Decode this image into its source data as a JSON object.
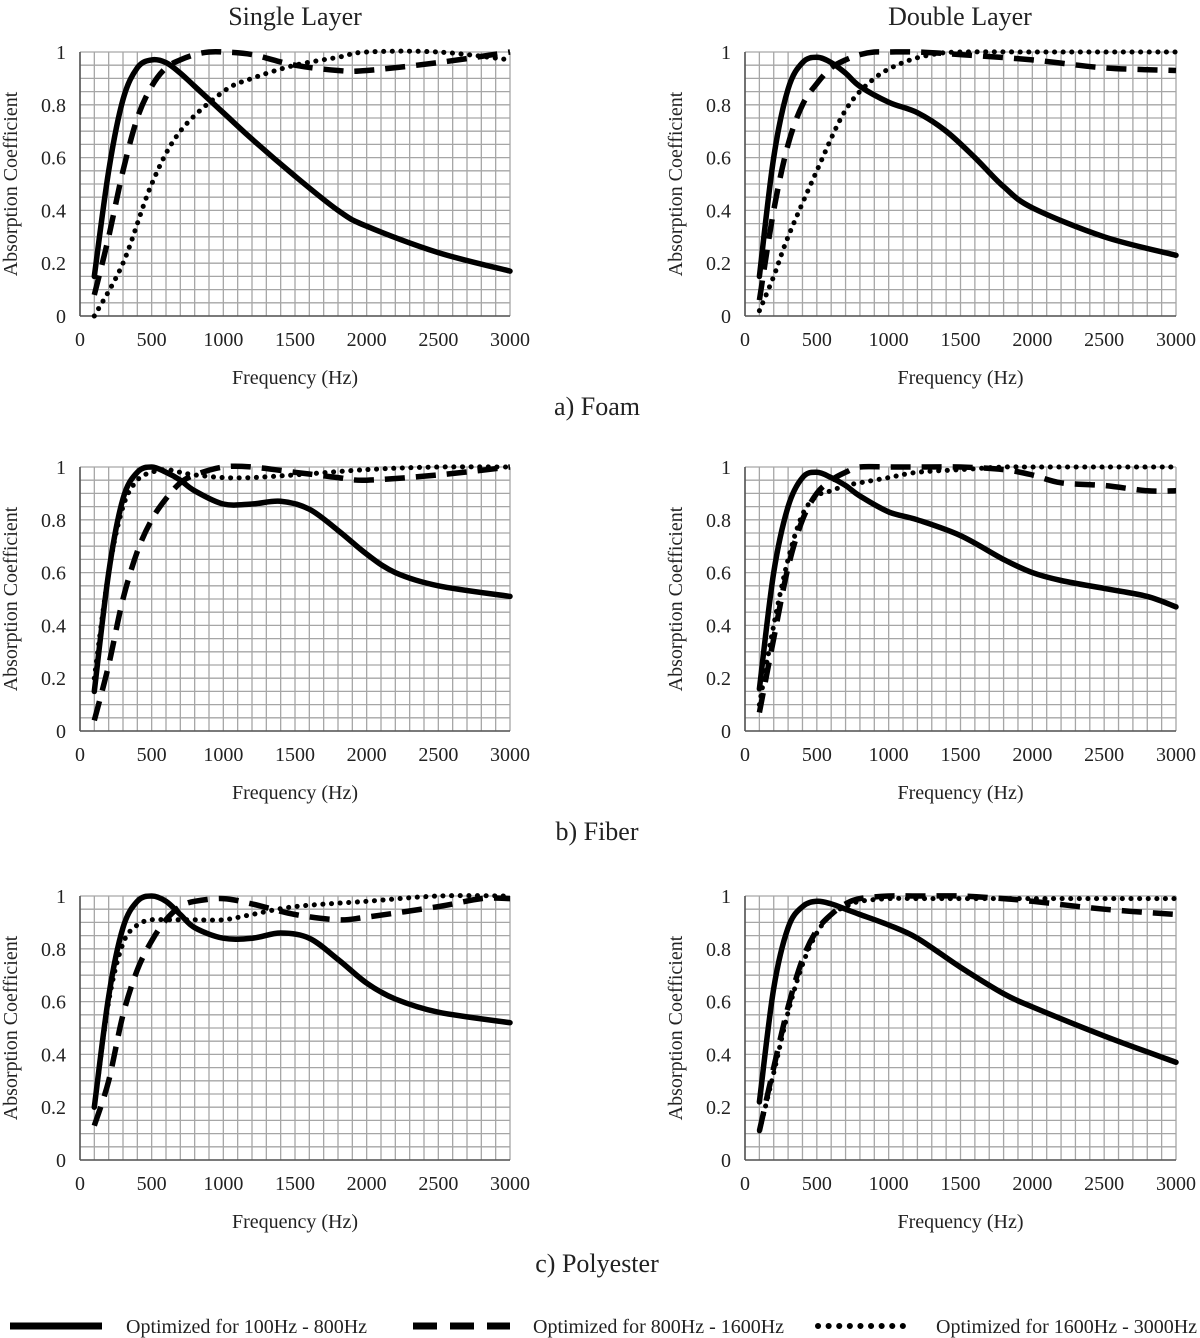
{
  "column_titles": [
    "Single Layer",
    "Double Layer"
  ],
  "row_captions": [
    "a) Foam",
    "b) Fiber",
    "c) Polyester"
  ],
  "legend": [
    {
      "label": "Optimized for  100Hz - 800Hz",
      "style": "solid"
    },
    {
      "label": "Optimized for  800Hz - 1600Hz",
      "style": "dashed"
    },
    {
      "label": "Optimized for  1600Hz - 3000Hz",
      "style": "dotted"
    }
  ],
  "colors": {
    "line": "#000000",
    "grid": "#a6a6a6",
    "text": "#222222"
  },
  "chart_data": [
    {
      "type": "line",
      "material": "Foam",
      "layer": "Single Layer",
      "xlabel": "Frequency (Hz)",
      "ylabel": "Absorption Coefficient",
      "xlim": [
        0,
        3000
      ],
      "ylim": [
        0,
        1
      ],
      "xticks": [
        "0",
        "500",
        "1000",
        "1500",
        "2000",
        "2500",
        "3000"
      ],
      "yticks": [
        "0",
        "0.2",
        "0.4",
        "0.6",
        "0.8",
        "1"
      ],
      "grid": true,
      "series": [
        {
          "style": "solid",
          "x": [
            100,
            200,
            300,
            400,
            500,
            600,
            700,
            800,
            1000,
            1200,
            1500,
            1800,
            2000,
            2500,
            3000
          ],
          "y": [
            0.15,
            0.55,
            0.82,
            0.94,
            0.97,
            0.96,
            0.92,
            0.87,
            0.77,
            0.67,
            0.53,
            0.4,
            0.34,
            0.24,
            0.17
          ]
        },
        {
          "style": "dashed",
          "x": [
            100,
            200,
            300,
            400,
            500,
            600,
            700,
            800,
            900,
            1000,
            1200,
            1500,
            1800,
            2000,
            2500,
            3000
          ],
          "y": [
            0.08,
            0.3,
            0.55,
            0.75,
            0.87,
            0.94,
            0.97,
            0.99,
            1.0,
            1.0,
            0.99,
            0.95,
            0.93,
            0.93,
            0.96,
            1.0
          ]
        },
        {
          "style": "dotted",
          "x": [
            100,
            300,
            500,
            700,
            1000,
            1200,
            1500,
            1800,
            2000,
            2500,
            3000
          ],
          "y": [
            0.0,
            0.2,
            0.5,
            0.7,
            0.85,
            0.9,
            0.95,
            0.98,
            1.0,
            1.0,
            0.97
          ]
        }
      ]
    },
    {
      "type": "line",
      "material": "Foam",
      "layer": "Double Layer",
      "xlabel": "Frequency (Hz)",
      "ylabel": "Absorption Coefficient",
      "xlim": [
        0,
        3000
      ],
      "ylim": [
        0,
        1
      ],
      "xticks": [
        "0",
        "500",
        "1000",
        "1500",
        "2000",
        "2500",
        "3000"
      ],
      "yticks": [
        "0",
        "0.2",
        "0.4",
        "0.6",
        "0.8",
        "1"
      ],
      "grid": true,
      "series": [
        {
          "style": "solid",
          "x": [
            100,
            200,
            300,
            400,
            500,
            600,
            700,
            800,
            1000,
            1200,
            1400,
            1600,
            1800,
            2000,
            2500,
            3000
          ],
          "y": [
            0.15,
            0.6,
            0.86,
            0.96,
            0.98,
            0.96,
            0.92,
            0.87,
            0.81,
            0.77,
            0.7,
            0.6,
            0.49,
            0.41,
            0.3,
            0.23
          ]
        },
        {
          "style": "dashed",
          "x": [
            100,
            200,
            300,
            400,
            500,
            600,
            700,
            800,
            900,
            1000,
            1200,
            1500,
            2000,
            2500,
            3000
          ],
          "y": [
            0.06,
            0.4,
            0.65,
            0.8,
            0.88,
            0.94,
            0.97,
            0.99,
            1.0,
            1.0,
            1.0,
            0.99,
            0.97,
            0.94,
            0.93
          ]
        },
        {
          "style": "dotted",
          "x": [
            100,
            200,
            300,
            500,
            700,
            900,
            1100,
            1300,
            1500,
            2000,
            2500,
            3000
          ],
          "y": [
            0.02,
            0.15,
            0.3,
            0.55,
            0.78,
            0.9,
            0.96,
            0.99,
            1.0,
            1.0,
            1.0,
            1.0
          ]
        }
      ]
    },
    {
      "type": "line",
      "material": "Fiber",
      "layer": "Single Layer",
      "xlabel": "Frequency (Hz)",
      "ylabel": "Absorption Coefficient",
      "xlim": [
        0,
        3000
      ],
      "ylim": [
        0,
        1
      ],
      "xticks": [
        "0",
        "500",
        "1000",
        "1500",
        "2000",
        "2500",
        "3000"
      ],
      "yticks": [
        "0",
        "0.2",
        "0.4",
        "0.6",
        "0.8",
        "1"
      ],
      "grid": true,
      "series": [
        {
          "style": "solid",
          "x": [
            100,
            200,
            300,
            400,
            500,
            600,
            700,
            800,
            1000,
            1200,
            1400,
            1600,
            1800,
            2000,
            2200,
            2500,
            3000
          ],
          "y": [
            0.15,
            0.6,
            0.88,
            0.98,
            1.0,
            0.98,
            0.95,
            0.91,
            0.86,
            0.86,
            0.87,
            0.84,
            0.76,
            0.67,
            0.6,
            0.55,
            0.51
          ]
        },
        {
          "style": "dashed",
          "x": [
            100,
            200,
            300,
            400,
            500,
            600,
            700,
            800,
            1000,
            1200,
            1500,
            1800,
            2000,
            2500,
            3000
          ],
          "y": [
            0.04,
            0.25,
            0.5,
            0.68,
            0.8,
            0.88,
            0.94,
            0.97,
            1.0,
            1.0,
            0.98,
            0.96,
            0.95,
            0.97,
            1.0
          ]
        },
        {
          "style": "dotted",
          "x": [
            100,
            200,
            300,
            400,
            500,
            600,
            700,
            800,
            1000,
            1200,
            1500,
            2000,
            2500,
            3000
          ],
          "y": [
            0.2,
            0.6,
            0.85,
            0.95,
            0.98,
            0.99,
            0.98,
            0.97,
            0.96,
            0.96,
            0.97,
            0.99,
            1.0,
            1.0
          ]
        }
      ]
    },
    {
      "type": "line",
      "material": "Fiber",
      "layer": "Double Layer",
      "xlabel": "Frequency (Hz)",
      "ylabel": "Absorption Coefficient",
      "xlim": [
        0,
        3000
      ],
      "ylim": [
        0,
        1
      ],
      "xticks": [
        "0",
        "500",
        "1000",
        "1500",
        "2000",
        "2500",
        "3000"
      ],
      "yticks": [
        "0",
        "0.2",
        "0.4",
        "0.6",
        "0.8",
        "1"
      ],
      "grid": true,
      "series": [
        {
          "style": "solid",
          "x": [
            100,
            200,
            300,
            400,
            500,
            600,
            700,
            800,
            1000,
            1200,
            1500,
            1800,
            2000,
            2200,
            2500,
            2800,
            3000
          ],
          "y": [
            0.16,
            0.6,
            0.85,
            0.96,
            0.98,
            0.96,
            0.93,
            0.89,
            0.83,
            0.8,
            0.74,
            0.65,
            0.6,
            0.57,
            0.54,
            0.51,
            0.47
          ]
        },
        {
          "style": "dashed",
          "x": [
            100,
            200,
            300,
            400,
            500,
            600,
            700,
            800,
            1000,
            1200,
            1500,
            1800,
            2000,
            2200,
            2500,
            2800,
            3000
          ],
          "y": [
            0.07,
            0.35,
            0.62,
            0.8,
            0.9,
            0.95,
            0.98,
            1.0,
            1.0,
            1.0,
            1.0,
            0.99,
            0.97,
            0.94,
            0.93,
            0.91,
            0.91
          ]
        },
        {
          "style": "dotted",
          "x": [
            100,
            200,
            300,
            400,
            500,
            600,
            700,
            800,
            1000,
            1200,
            1500,
            1800,
            2000,
            2500,
            3000
          ],
          "y": [
            0.1,
            0.4,
            0.65,
            0.82,
            0.89,
            0.91,
            0.93,
            0.94,
            0.96,
            0.98,
            0.99,
            1.0,
            1.0,
            1.0,
            1.0
          ]
        }
      ]
    },
    {
      "type": "line",
      "material": "Polyester",
      "layer": "Single Layer",
      "xlabel": "Frequency (Hz)",
      "ylabel": "Absorption Coefficient",
      "xlim": [
        0,
        3000
      ],
      "ylim": [
        0,
        1
      ],
      "xticks": [
        "0",
        "500",
        "1000",
        "1500",
        "2000",
        "2500",
        "3000"
      ],
      "yticks": [
        "0",
        "0.2",
        "0.4",
        "0.6",
        "0.8",
        "1"
      ],
      "grid": true,
      "series": [
        {
          "style": "solid",
          "x": [
            100,
            200,
            300,
            400,
            500,
            600,
            700,
            800,
            1000,
            1200,
            1400,
            1600,
            1800,
            2000,
            2200,
            2500,
            3000
          ],
          "y": [
            0.2,
            0.62,
            0.88,
            0.98,
            1.0,
            0.98,
            0.93,
            0.88,
            0.84,
            0.84,
            0.86,
            0.84,
            0.76,
            0.67,
            0.61,
            0.56,
            0.52
          ]
        },
        {
          "style": "dashed",
          "x": [
            100,
            200,
            300,
            400,
            500,
            600,
            700,
            800,
            1000,
            1200,
            1500,
            1800,
            2000,
            2500,
            2800,
            3000
          ],
          "y": [
            0.13,
            0.3,
            0.55,
            0.72,
            0.83,
            0.91,
            0.96,
            0.98,
            0.99,
            0.97,
            0.93,
            0.91,
            0.92,
            0.96,
            0.99,
            0.99
          ]
        },
        {
          "style": "dotted",
          "x": [
            100,
            200,
            300,
            400,
            500,
            600,
            700,
            800,
            1000,
            1200,
            1500,
            2000,
            2500,
            3000
          ],
          "y": [
            0.2,
            0.6,
            0.82,
            0.89,
            0.91,
            0.91,
            0.91,
            0.91,
            0.91,
            0.93,
            0.96,
            0.98,
            1.0,
            1.0
          ]
        }
      ]
    },
    {
      "type": "line",
      "material": "Polyester",
      "layer": "Double Layer",
      "xlabel": "Frequency (Hz)",
      "ylabel": "Absorption Coefficient",
      "xlim": [
        0,
        3000
      ],
      "ylim": [
        0,
        1
      ],
      "xticks": [
        "0",
        "500",
        "1000",
        "1500",
        "2000",
        "2500",
        "3000"
      ],
      "yticks": [
        "0",
        "0.2",
        "0.4",
        "0.6",
        "0.8",
        "1"
      ],
      "grid": true,
      "series": [
        {
          "style": "solid",
          "x": [
            100,
            200,
            300,
            400,
            500,
            600,
            700,
            800,
            1000,
            1200,
            1500,
            1800,
            2000,
            2500,
            3000
          ],
          "y": [
            0.22,
            0.65,
            0.88,
            0.96,
            0.98,
            0.97,
            0.95,
            0.93,
            0.89,
            0.84,
            0.73,
            0.63,
            0.58,
            0.47,
            0.37
          ]
        },
        {
          "style": "dashed",
          "x": [
            100,
            200,
            300,
            400,
            500,
            600,
            700,
            800,
            1000,
            1200,
            1500,
            1800,
            2000,
            2500,
            3000
          ],
          "y": [
            0.11,
            0.35,
            0.58,
            0.76,
            0.87,
            0.93,
            0.97,
            0.99,
            1.0,
            1.0,
            1.0,
            0.99,
            0.98,
            0.95,
            0.93
          ]
        },
        {
          "style": "dotted",
          "x": [
            100,
            200,
            300,
            400,
            500,
            600,
            700,
            800,
            1000,
            1200,
            1500,
            2000,
            2500,
            3000
          ],
          "y": [
            0.11,
            0.33,
            0.56,
            0.74,
            0.86,
            0.93,
            0.96,
            0.98,
            0.99,
            0.99,
            0.99,
            0.99,
            0.99,
            0.99
          ]
        }
      ]
    }
  ]
}
